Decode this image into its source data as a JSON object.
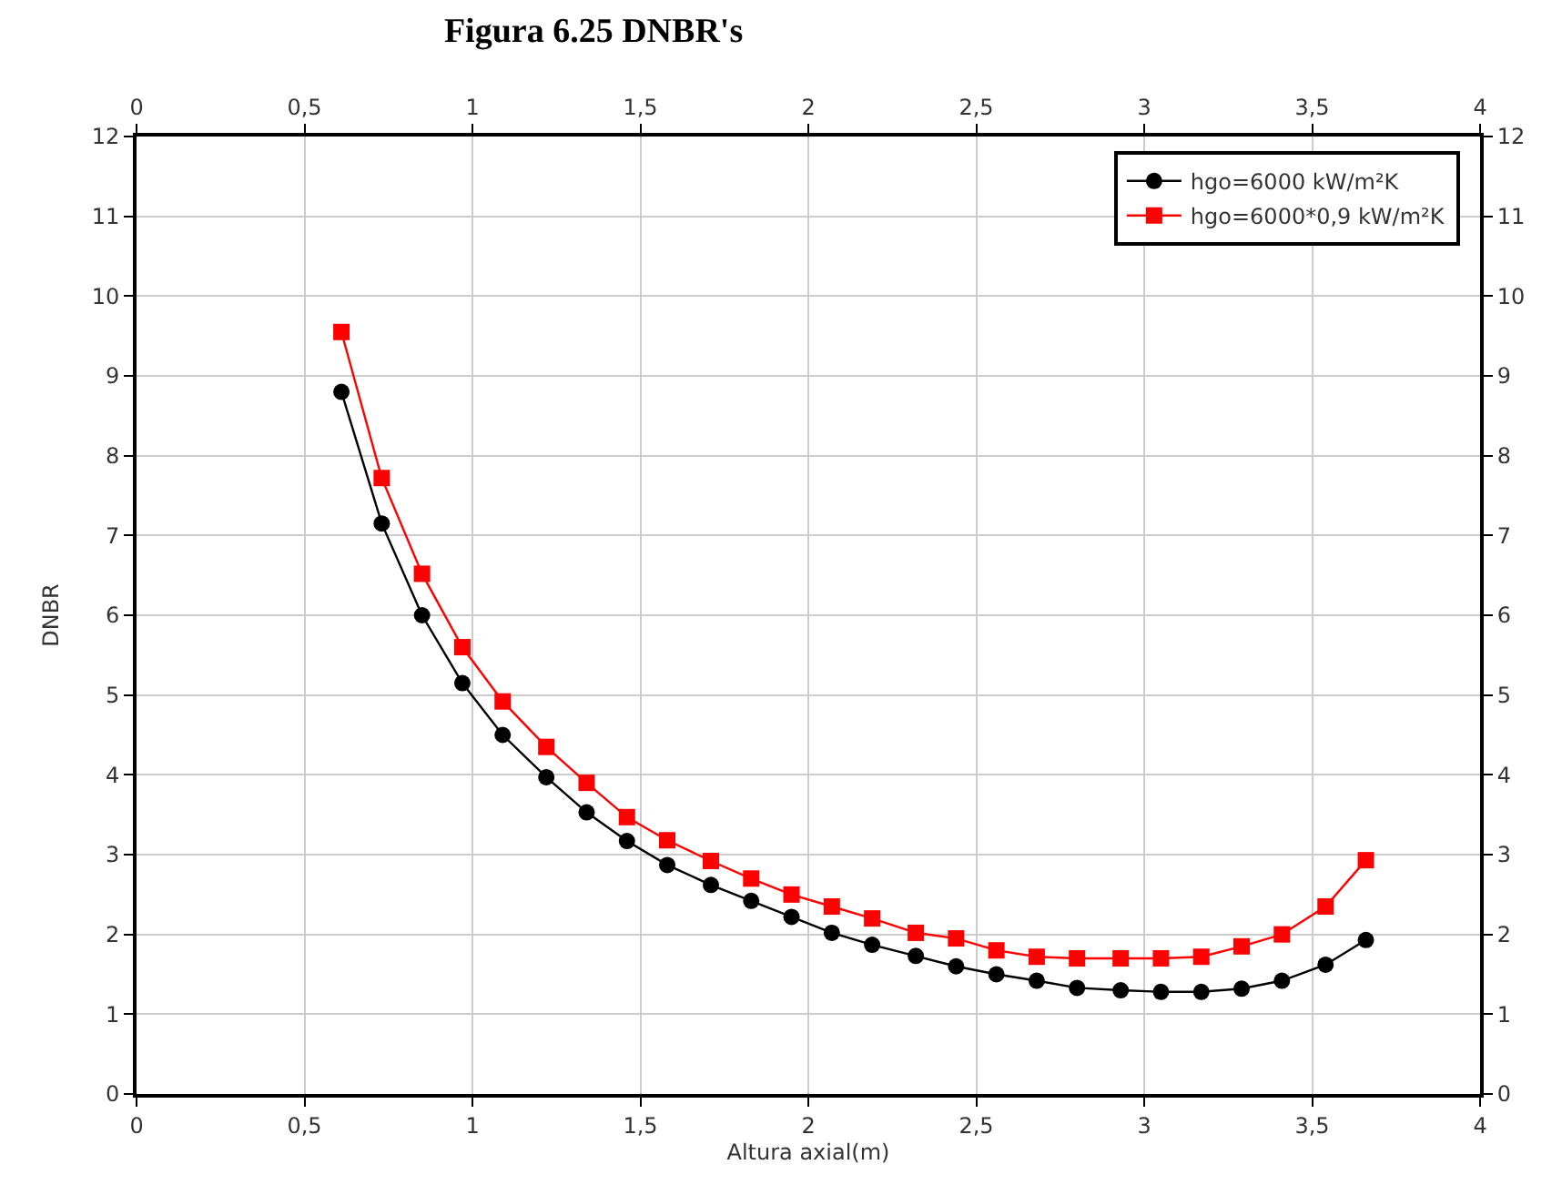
{
  "chart_data": {
    "type": "line",
    "title": "Figura 6.25 DNBR's",
    "xlabel": "Altura axial(m)",
    "ylabel": "DNBR",
    "x": [
      0.61,
      0.73,
      0.85,
      0.97,
      1.09,
      1.22,
      1.34,
      1.46,
      1.58,
      1.71,
      1.83,
      1.95,
      2.07,
      2.19,
      2.32,
      2.44,
      2.56,
      2.68,
      2.8,
      2.93,
      3.05,
      3.17,
      3.29,
      3.41,
      3.54,
      3.66
    ],
    "series": [
      {
        "name": "hgo=6000 kW/m²K",
        "color": "#000000",
        "marker": "circle",
        "values": [
          8.8,
          7.15,
          6.0,
          5.15,
          4.5,
          3.97,
          3.53,
          3.17,
          2.87,
          2.62,
          2.42,
          2.22,
          2.02,
          1.87,
          1.73,
          1.6,
          1.5,
          1.42,
          1.33,
          1.3,
          1.28,
          1.28,
          1.32,
          1.42,
          1.62,
          1.93
        ]
      },
      {
        "name": "hgo=6000*0,9 kW/m²K",
        "color": "#ff0000",
        "marker": "square",
        "values": [
          9.55,
          7.72,
          6.52,
          5.6,
          4.92,
          4.35,
          3.9,
          3.47,
          3.18,
          2.92,
          2.7,
          2.5,
          2.35,
          2.2,
          2.02,
          1.95,
          1.8,
          1.72,
          1.7,
          1.7,
          1.7,
          1.72,
          1.85,
          2.0,
          2.35,
          2.93
        ]
      }
    ],
    "xlim": [
      0,
      4
    ],
    "xticks": [
      0,
      {
        "value": 0.5,
        "label": "0,5"
      },
      1,
      {
        "value": 1.5,
        "label": "1,5"
      },
      2,
      {
        "value": 2.5,
        "label": "2,5"
      },
      3,
      {
        "value": 3.5,
        "label": "3,5"
      },
      4
    ],
    "x2lim": [
      0,
      4
    ],
    "x2ticks": [
      0,
      {
        "value": 0.5,
        "label": "0,5"
      },
      1,
      {
        "value": 1.5,
        "label": "1,5"
      },
      2,
      {
        "value": 2.5,
        "label": "2,5"
      },
      3,
      {
        "value": 3.5,
        "label": "3,5"
      },
      4
    ],
    "ylim": [
      0,
      12
    ],
    "yticks": [
      0,
      1,
      2,
      3,
      4,
      5,
      6,
      7,
      8,
      9,
      10,
      11,
      12
    ],
    "y2lim": [
      0,
      12
    ],
    "y2ticks": [
      0,
      1,
      2,
      3,
      4,
      5,
      6,
      7,
      8,
      9,
      10,
      11,
      12
    ],
    "grid": true,
    "legend": "top right",
    "line_style": "solid"
  }
}
